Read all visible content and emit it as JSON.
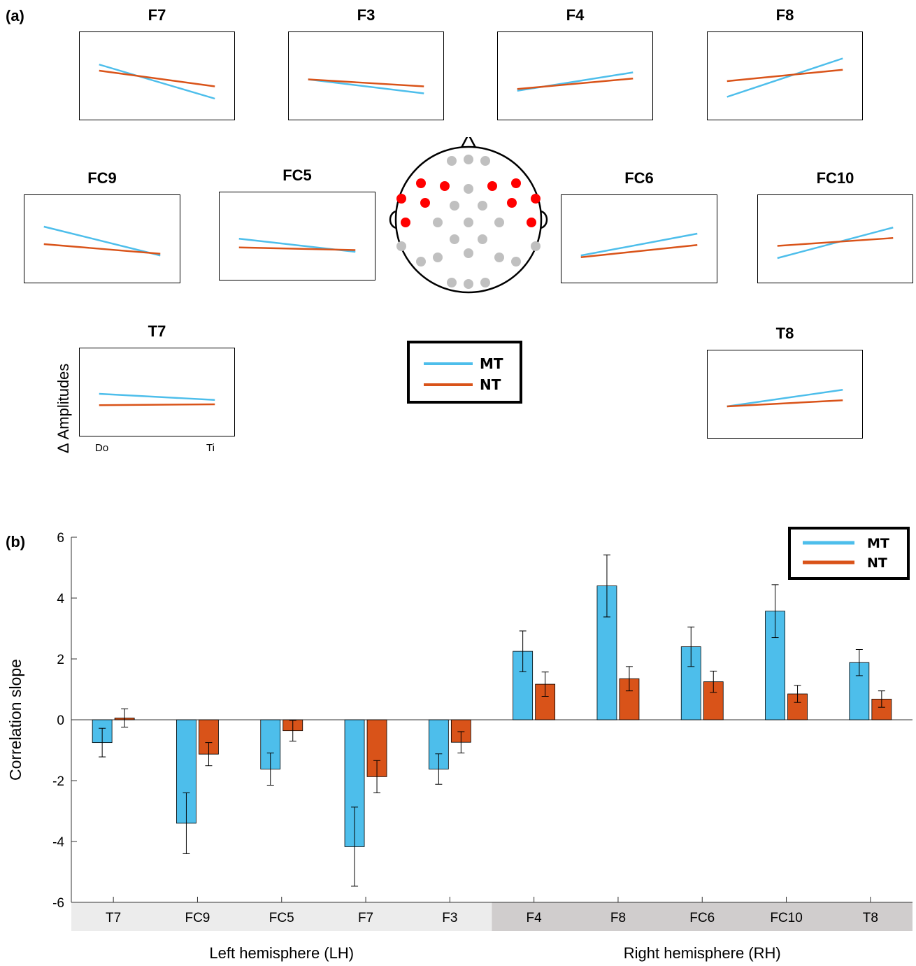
{
  "panel_a": {
    "letter": "(a)",
    "y_axis_label": "Δ Amplitudes",
    "x_ticks": [
      "Do",
      "Ti"
    ],
    "legend": [
      {
        "label": "MT",
        "color": "#4dbeeb"
      },
      {
        "label": "NT",
        "color": "#d95319"
      }
    ],
    "head_icon": "eeg-electrode-head-map-icon",
    "plots": [
      {
        "title": "F7",
        "mt": [
          0.63,
          0.24
        ],
        "nt": [
          0.56,
          0.38
        ]
      },
      {
        "title": "F3",
        "mt": [
          0.46,
          0.3
        ],
        "nt": [
          0.46,
          0.38
        ]
      },
      {
        "title": "F4",
        "mt": [
          0.33,
          0.54
        ],
        "nt": [
          0.35,
          0.47
        ]
      },
      {
        "title": "F8",
        "mt": [
          0.26,
          0.7
        ],
        "nt": [
          0.44,
          0.57
        ]
      },
      {
        "title": "FC9",
        "mt": [
          0.64,
          0.31
        ],
        "nt": [
          0.44,
          0.33
        ]
      },
      {
        "title": "FC5",
        "mt": [
          0.47,
          0.32
        ],
        "nt": [
          0.37,
          0.34
        ]
      },
      {
        "title": "FC6",
        "mt": [
          0.31,
          0.56
        ],
        "nt": [
          0.29,
          0.43
        ]
      },
      {
        "title": "FC10",
        "mt": [
          0.28,
          0.63
        ],
        "nt": [
          0.42,
          0.51
        ]
      },
      {
        "title": "T7",
        "mt": [
          0.48,
          0.41
        ],
        "nt": [
          0.35,
          0.36
        ]
      },
      {
        "title": "T8",
        "mt": [
          0.36,
          0.55
        ],
        "nt": [
          0.36,
          0.43
        ]
      }
    ]
  },
  "chart_data": {
    "type": "bar",
    "panel_letter": "(b)",
    "categories": [
      "T7",
      "FC9",
      "FC5",
      "F7",
      "F3",
      "F4",
      "F8",
      "FC6",
      "FC10",
      "T8"
    ],
    "series": [
      {
        "name": "MT",
        "color": "#4dbeeb",
        "values": [
          -0.75,
          -3.4,
          -1.62,
          -4.17,
          -1.62,
          2.25,
          4.4,
          2.4,
          3.57,
          1.88
        ],
        "errors": [
          0.47,
          1.0,
          0.53,
          1.3,
          0.5,
          0.67,
          1.02,
          0.65,
          0.87,
          0.43
        ]
      },
      {
        "name": "NT",
        "color": "#d95319",
        "values": [
          0.06,
          -1.13,
          -0.36,
          -1.87,
          -0.74,
          1.17,
          1.35,
          1.25,
          0.85,
          0.68
        ],
        "errors": [
          0.3,
          0.38,
          0.34,
          0.53,
          0.35,
          0.4,
          0.4,
          0.35,
          0.28,
          0.27
        ]
      }
    ],
    "ylabel": "Correlation slope",
    "ylim": [
      -6,
      6
    ],
    "yticks": [
      -6,
      -4,
      -2,
      0,
      2,
      4,
      6
    ],
    "legend_position": "top-right",
    "groups": [
      {
        "label": "Left hemisphere (LH)",
        "categories": [
          "T7",
          "FC9",
          "FC5",
          "F7",
          "F3"
        ],
        "band_color": "#ececec"
      },
      {
        "label": "Right hemisphere (RH)",
        "categories": [
          "F4",
          "F8",
          "FC6",
          "FC10",
          "T8"
        ],
        "band_color": "#d0cdcd"
      }
    ]
  }
}
